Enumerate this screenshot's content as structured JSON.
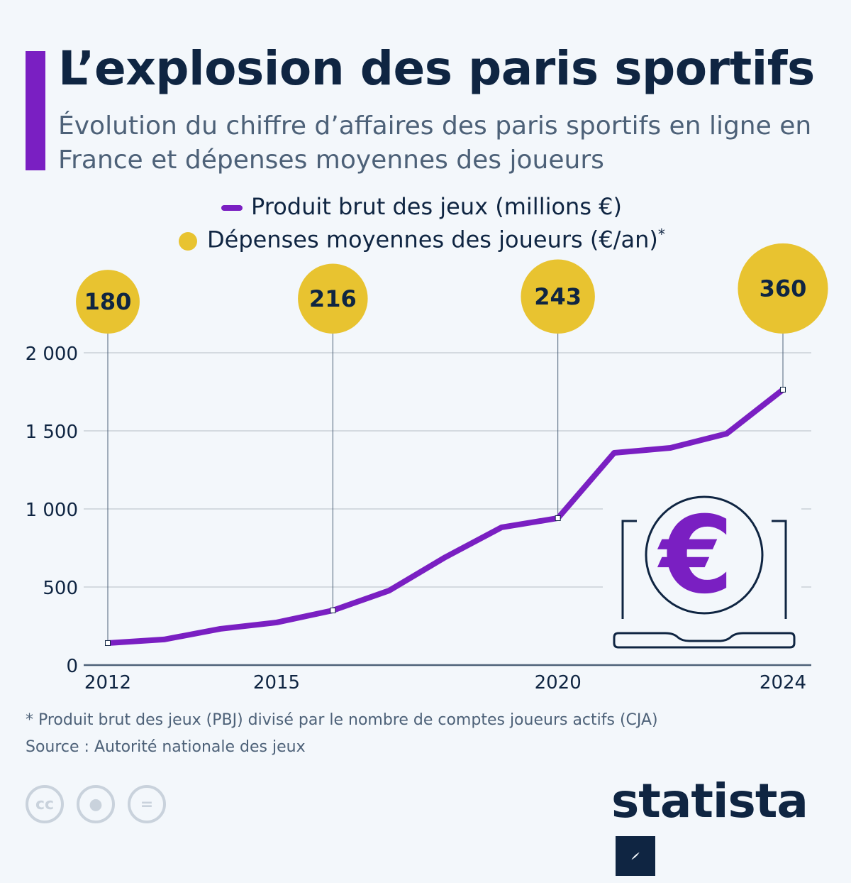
{
  "header": {
    "title": "L’explosion des paris sportifs",
    "subtitle": "Évolution du chiffre d’affaires des paris sportifs en ligne en France et dépenses moyennes des joueurs"
  },
  "legend": {
    "line_label": "Produit brut des jeux (millions €)",
    "dot_label": "Dépenses moyennes des joueurs (€/an)",
    "dot_suffix": "*"
  },
  "chart_data": {
    "type": "line",
    "title": "L’explosion des paris sportifs",
    "x": [
      2012,
      2013,
      2014,
      2015,
      2016,
      2017,
      2018,
      2019,
      2020,
      2021,
      2022,
      2023,
      2024
    ],
    "series": [
      {
        "name": "Produit brut des jeux (millions €)",
        "color": "#7a1fc2",
        "values": [
          141,
          164,
          232,
          273,
          350,
          477,
          691,
          882,
          941,
          1359,
          1391,
          1482,
          1764
        ]
      },
      {
        "name": "Dépenses moyennes des joueurs (€/an)",
        "color": "#e8c330",
        "type": "bubble",
        "x": [
          2012,
          2016,
          2020,
          2024
        ],
        "values": [
          180,
          216,
          243,
          360
        ]
      }
    ],
    "x_ticks": [
      "2012",
      "2015",
      "2020",
      "2024"
    ],
    "y_ticks": [
      "0",
      "500",
      "1 000",
      "1 500",
      "2 000"
    ],
    "ylim": [
      0,
      2000
    ],
    "xlim": [
      2012,
      2024
    ],
    "grid": true,
    "legend_position": "top"
  },
  "footer": {
    "note": "* Produit brut des jeux (PBJ) divisé par le nombre de comptes joueurs actifs (CJA)",
    "source": "Source : Autorité nationale des jeux",
    "brand": "statista",
    "license_icons": [
      "cc-icon",
      "attribution-icon",
      "no-derivatives-icon"
    ],
    "cc_label": "cc"
  }
}
